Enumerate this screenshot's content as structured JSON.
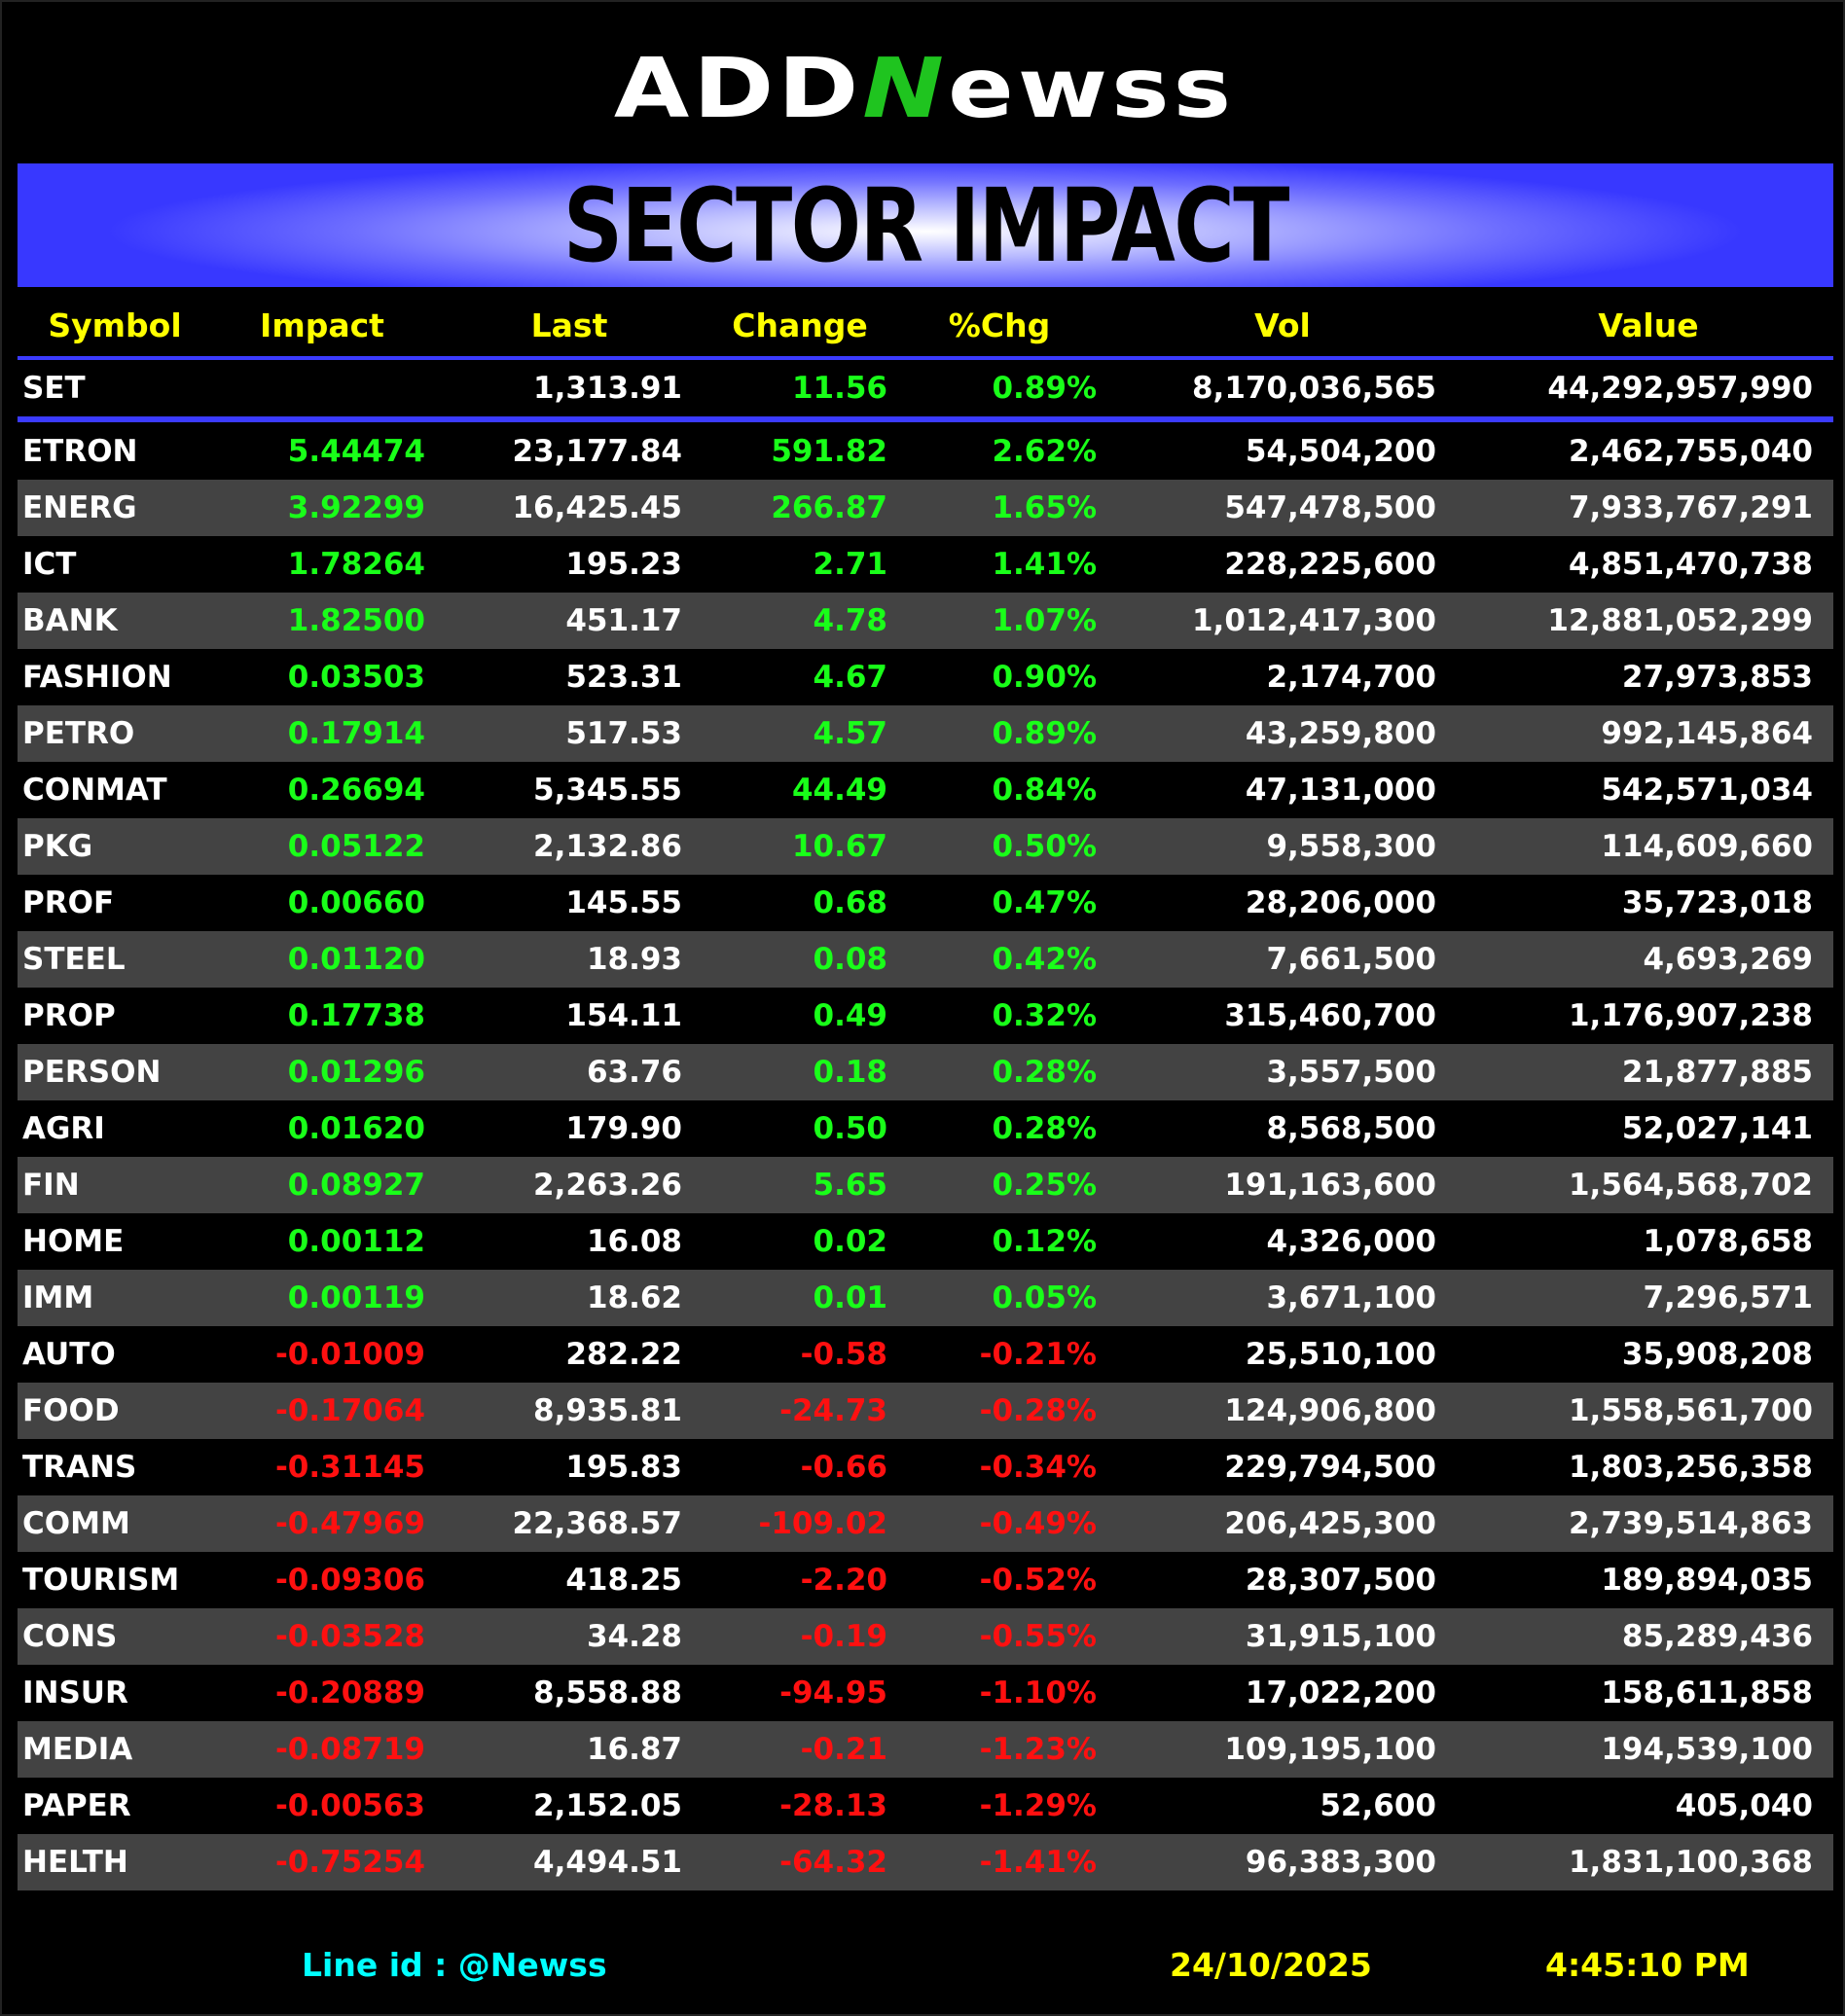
{
  "logo": {
    "text_left": "ADD",
    "text_n": "N",
    "text_right": "ewss"
  },
  "title": "SECTOR IMPACT",
  "columns": [
    "Symbol",
    "Impact",
    "Last",
    "Change",
    "%Chg",
    "Vol",
    "Value"
  ],
  "index_row": {
    "symbol": "SET",
    "impact": "",
    "last": "1,313.91",
    "change": "11.56",
    "pct": "0.89%",
    "vol": "8,170,036,565",
    "value": "44,292,957,990"
  },
  "rows": [
    [
      "ETRON",
      "5.44474",
      "23,177.84",
      "591.82",
      "2.62%",
      "54,504,200",
      "2,462,755,040"
    ],
    [
      "ENERG",
      "3.92299",
      "16,425.45",
      "266.87",
      "1.65%",
      "547,478,500",
      "7,933,767,291"
    ],
    [
      "ICT",
      "1.78264",
      "195.23",
      "2.71",
      "1.41%",
      "228,225,600",
      "4,851,470,738"
    ],
    [
      "BANK",
      "1.82500",
      "451.17",
      "4.78",
      "1.07%",
      "1,012,417,300",
      "12,881,052,299"
    ],
    [
      "FASHION",
      "0.03503",
      "523.31",
      "4.67",
      "0.90%",
      "2,174,700",
      "27,973,853"
    ],
    [
      "PETRO",
      "0.17914",
      "517.53",
      "4.57",
      "0.89%",
      "43,259,800",
      "992,145,864"
    ],
    [
      "CONMAT",
      "0.26694",
      "5,345.55",
      "44.49",
      "0.84%",
      "47,131,000",
      "542,571,034"
    ],
    [
      "PKG",
      "0.05122",
      "2,132.86",
      "10.67",
      "0.50%",
      "9,558,300",
      "114,609,660"
    ],
    [
      "PROF",
      "0.00660",
      "145.55",
      "0.68",
      "0.47%",
      "28,206,000",
      "35,723,018"
    ],
    [
      "STEEL",
      "0.01120",
      "18.93",
      "0.08",
      "0.42%",
      "7,661,500",
      "4,693,269"
    ],
    [
      "PROP",
      "0.17738",
      "154.11",
      "0.49",
      "0.32%",
      "315,460,700",
      "1,176,907,238"
    ],
    [
      "PERSON",
      "0.01296",
      "63.76",
      "0.18",
      "0.28%",
      "3,557,500",
      "21,877,885"
    ],
    [
      "AGRI",
      "0.01620",
      "179.90",
      "0.50",
      "0.28%",
      "8,568,500",
      "52,027,141"
    ],
    [
      "FIN",
      "0.08927",
      "2,263.26",
      "5.65",
      "0.25%",
      "191,163,600",
      "1,564,568,702"
    ],
    [
      "HOME",
      "0.00112",
      "16.08",
      "0.02",
      "0.12%",
      "4,326,000",
      "1,078,658"
    ],
    [
      "IMM",
      "0.00119",
      "18.62",
      "0.01",
      "0.05%",
      "3,671,100",
      "7,296,571"
    ],
    [
      "AUTO",
      "-0.01009",
      "282.22",
      "-0.58",
      "-0.21%",
      "25,510,100",
      "35,908,208"
    ],
    [
      "FOOD",
      "-0.17064",
      "8,935.81",
      "-24.73",
      "-0.28%",
      "124,906,800",
      "1,558,561,700"
    ],
    [
      "TRANS",
      "-0.31145",
      "195.83",
      "-0.66",
      "-0.34%",
      "229,794,500",
      "1,803,256,358"
    ],
    [
      "COMM",
      "-0.47969",
      "22,368.57",
      "-109.02",
      "-0.49%",
      "206,425,300",
      "2,739,514,863"
    ],
    [
      "TOURISM",
      "-0.09306",
      "418.25",
      "-2.20",
      "-0.52%",
      "28,307,500",
      "189,894,035"
    ],
    [
      "CONS",
      "-0.03528",
      "34.28",
      "-0.19",
      "-0.55%",
      "31,915,100",
      "85,289,436"
    ],
    [
      "INSUR",
      "-0.20889",
      "8,558.88",
      "-94.95",
      "-1.10%",
      "17,022,200",
      "158,611,858"
    ],
    [
      "MEDIA",
      "-0.08719",
      "16.87",
      "-0.21",
      "-1.23%",
      "109,195,100",
      "194,539,100"
    ],
    [
      "PAPER",
      "-0.00563",
      "2,152.05",
      "-28.13",
      "-1.29%",
      "52,600",
      "405,040"
    ],
    [
      "HELTH",
      "-0.75254",
      "4,494.51",
      "-64.32",
      "-1.41%",
      "96,383,300",
      "1,831,100,368"
    ]
  ],
  "footer": {
    "line_id": "Line id  : @Newss",
    "date": "24/10/2025",
    "time": "4:45:10 PM"
  },
  "colors": {
    "up": "#19ff19",
    "down": "#ff1010",
    "header": "#ffff00",
    "accent": "#3b3bff",
    "alt_row": "#434343",
    "footer_id": "#00ffff"
  }
}
